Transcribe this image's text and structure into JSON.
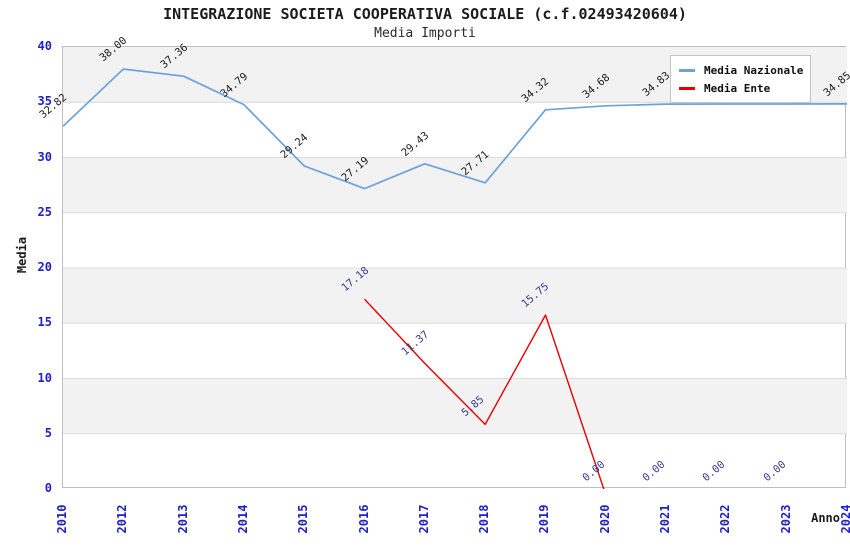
{
  "chart_data": {
    "type": "line",
    "title": "INTEGRAZIONE SOCIETA COOPERATIVA SOCIALE (c.f.02493420604)",
    "subtitle": "Media Importi",
    "xlabel": "Anno",
    "ylabel": "Media",
    "ylim": [
      0,
      40
    ],
    "ytick_step": 5,
    "grid": "horizontal-banded",
    "legend_position": "top-right",
    "categories": [
      "2010",
      "2012",
      "2013",
      "2014",
      "2015",
      "2016",
      "2017",
      "2018",
      "2019",
      "2020",
      "2021",
      "2022",
      "2023",
      "2024"
    ],
    "series": [
      {
        "name": "Media Nazionale",
        "color": "#6ca2dc",
        "label_color": "#1a1a1a",
        "values": [
          32.82,
          38.0,
          37.36,
          34.79,
          29.24,
          27.19,
          29.43,
          27.71,
          34.32,
          34.68,
          34.83,
          34.84,
          34.84,
          34.85
        ]
      },
      {
        "name": "Media Ente",
        "color": "#e60000",
        "label_color": "#383890",
        "clip_at_zero": true,
        "values": [
          null,
          null,
          null,
          null,
          null,
          17.18,
          11.37,
          5.85,
          15.75,
          0.0,
          0.0,
          0.0,
          0.0,
          null
        ]
      }
    ]
  },
  "colors": {
    "tick_label": "#2020c8",
    "grid_line": "#dcdcdc",
    "band_fill": "#f2f2f2",
    "plot_border": "#bfbfbf"
  }
}
